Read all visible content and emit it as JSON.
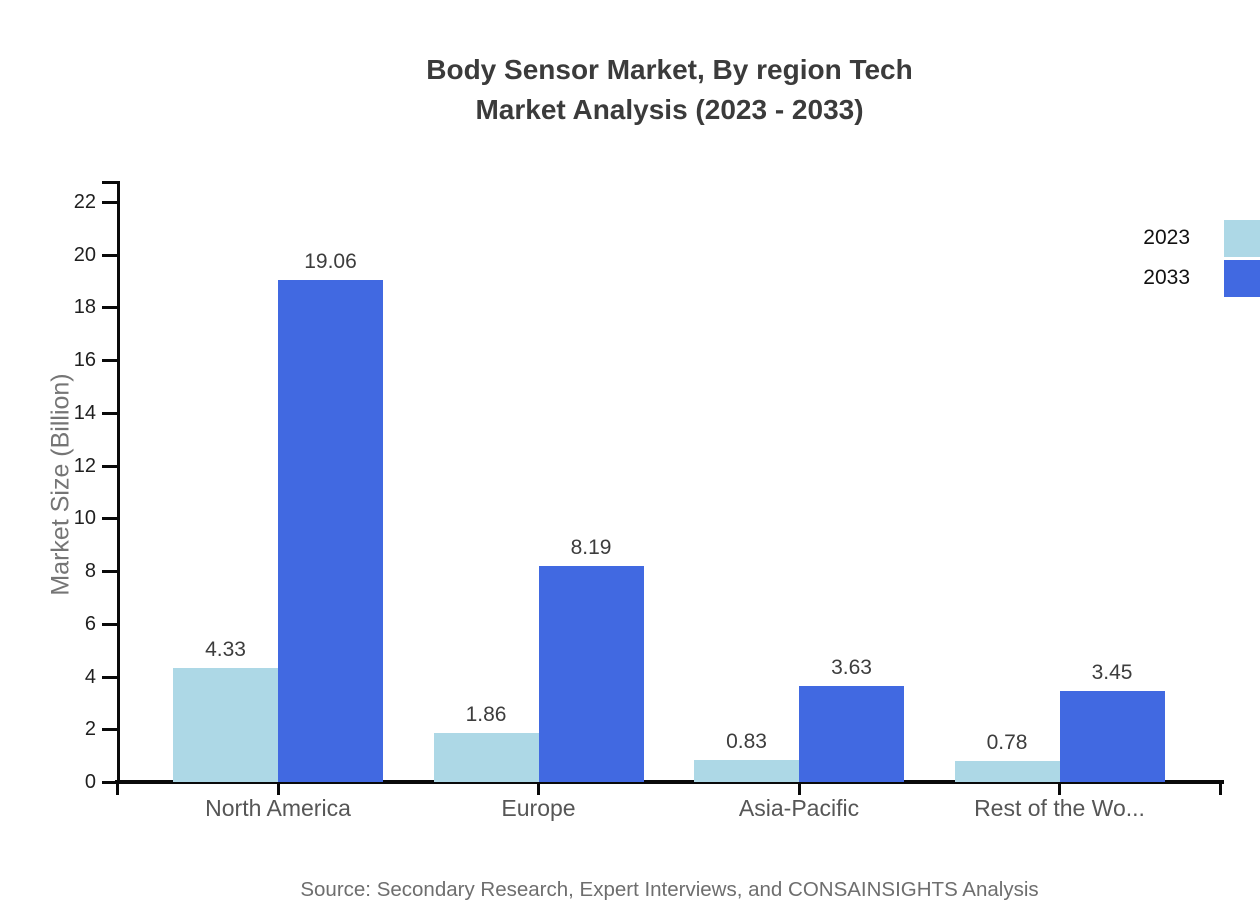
{
  "title": {
    "line1": "Body Sensor Market, By region Tech",
    "line2": "Market Analysis (2023 - 2033)"
  },
  "source": "Source: Secondary Research, Expert Interviews, and CONSAINSIGHTS Analysis",
  "chart_data": {
    "type": "bar",
    "title": "Body Sensor Market, By region Tech Market Analysis (2023 - 2033)",
    "categories": [
      "North America",
      "Europe",
      "Asia-Pacific",
      "Rest of the Wo..."
    ],
    "series": [
      {
        "name": "2023",
        "color": "#ADD8E6",
        "values": [
          4.33,
          1.86,
          0.83,
          0.78
        ]
      },
      {
        "name": "2033",
        "color": "#4169E1",
        "values": [
          19.06,
          8.19,
          3.63,
          3.45
        ]
      }
    ],
    "xlabel": "",
    "ylabel": "Market Size (Billion)",
    "ylim": [
      0,
      22
    ],
    "ytick_step": 2,
    "grid": false,
    "value_labels": true,
    "legend_position": "top-right"
  }
}
